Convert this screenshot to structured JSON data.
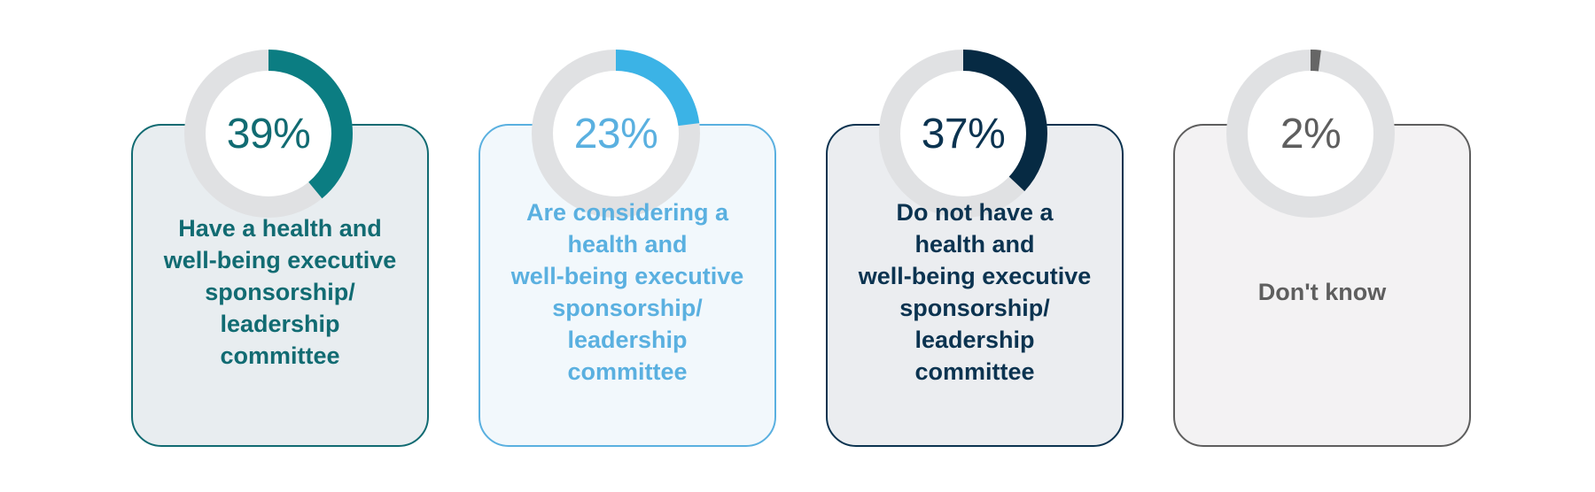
{
  "chart_data": {
    "type": "pie",
    "items": [
      {
        "value": 39,
        "value_label": "39%",
        "lines": [
          "Have a health and",
          "well-being executive",
          "sponsorship/",
          "leadership",
          "committee"
        ],
        "color": "#0b7d82",
        "text_color": "#116b72",
        "border": "#116b72",
        "bg": "#e8edf0"
      },
      {
        "value": 23,
        "value_label": "23%",
        "lines": [
          "Are considering a",
          "health and",
          "well-being executive",
          "sponsorship/",
          "leadership",
          "committee"
        ],
        "color": "#3bb3e6",
        "text_color": "#5ab0e0",
        "border": "#5ab0e0",
        "bg": "#f2f8fc"
      },
      {
        "value": 37,
        "value_label": "37%",
        "lines": [
          "Do not have a",
          "health and",
          "well-being executive",
          "sponsorship/",
          "leadership",
          "committee"
        ],
        "color": "#062a43",
        "text_color": "#0b3350",
        "border": "#0b3350",
        "bg": "#ebedf0"
      },
      {
        "value": 2,
        "value_label": "2%",
        "lines": [
          "Don't know"
        ],
        "color": "#666666",
        "text_color": "#5e5e5e",
        "border": "#5e5e5e",
        "bg": "#f3f2f3"
      }
    ],
    "track_color": "#e0e1e3"
  }
}
